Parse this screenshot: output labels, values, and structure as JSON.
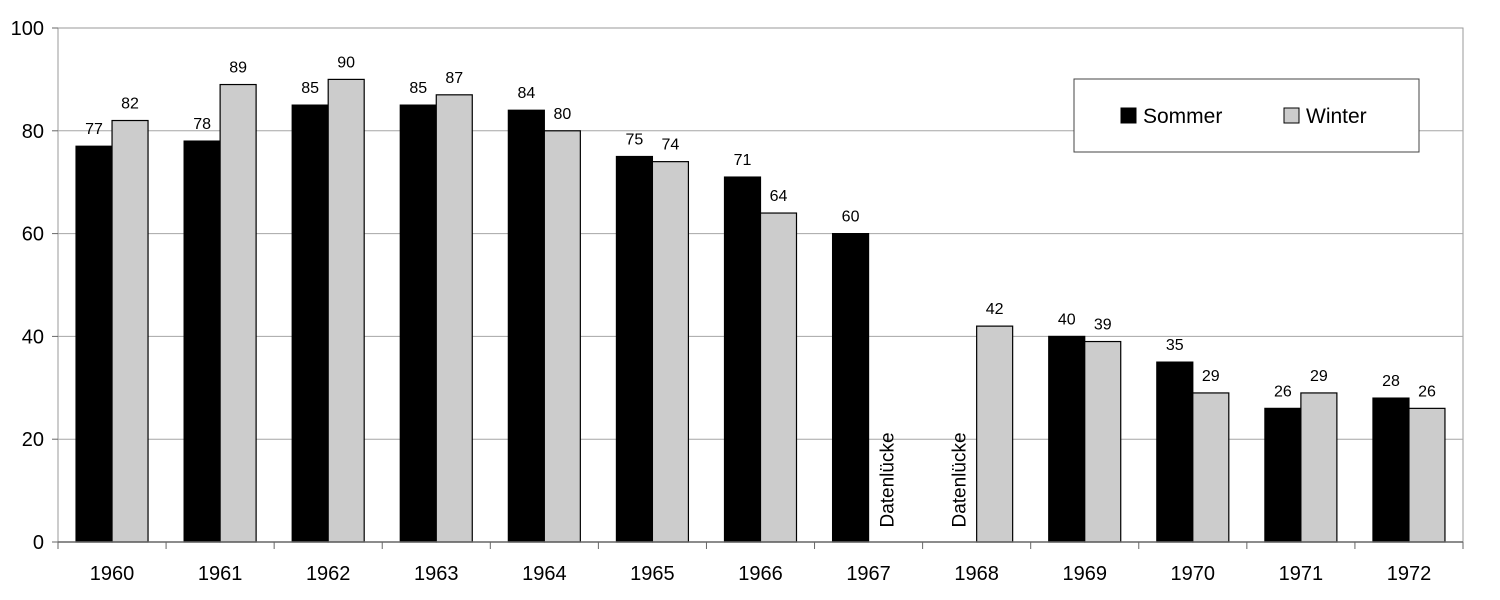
{
  "chart_data": {
    "type": "bar",
    "title": "",
    "xlabel": "",
    "ylabel": "",
    "ylim": [
      0,
      100
    ],
    "yticks": [
      0,
      20,
      40,
      60,
      80,
      100
    ],
    "grid": true,
    "legend_position": "top-right",
    "categories": [
      "1960",
      "1961",
      "1962",
      "1963",
      "1964",
      "1965",
      "1966",
      "1967",
      "1968",
      "1969",
      "1970",
      "1971",
      "1972"
    ],
    "series": [
      {
        "name": "Sommer",
        "color": "#000000",
        "values": [
          77,
          78,
          85,
          85,
          84,
          75,
          71,
          60,
          null,
          40,
          35,
          26,
          28
        ]
      },
      {
        "name": "Winter",
        "color": "#cccccc",
        "values": [
          82,
          89,
          90,
          87,
          80,
          74,
          64,
          null,
          42,
          39,
          29,
          29,
          26
        ]
      }
    ],
    "annotations": [
      {
        "text": "Datenlücke",
        "category": "1967",
        "series": "Winter"
      },
      {
        "text": "Datenlücke",
        "category": "1968",
        "series": "Sommer"
      }
    ]
  }
}
